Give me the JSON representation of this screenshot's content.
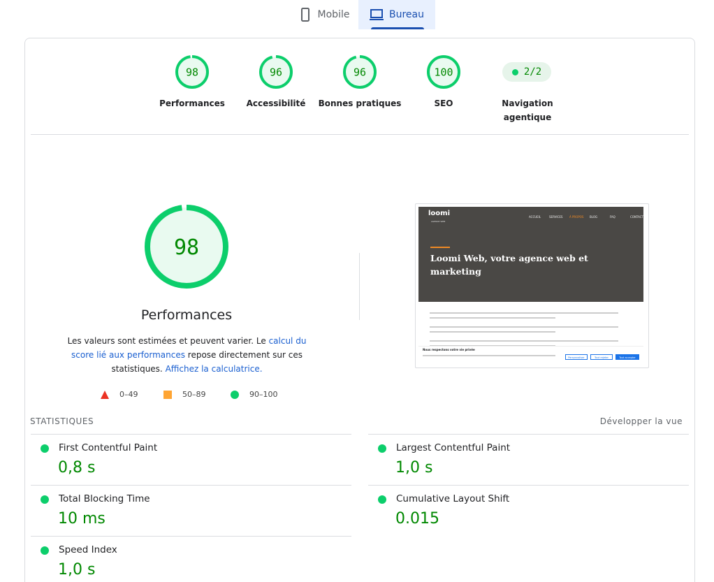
{
  "tabs": [
    {
      "label": "Mobile",
      "active": false
    },
    {
      "label": "Bureau",
      "active": true
    }
  ],
  "gauge_range": [
    0,
    100
  ],
  "scores": [
    {
      "label": "Performances",
      "value": 98
    },
    {
      "label": "Accessibilité",
      "value": 96
    },
    {
      "label": "Bonnes pratiques",
      "value": 96
    },
    {
      "label": "SEO",
      "value": 100
    }
  ],
  "agentic": {
    "label": "Navigation agentique",
    "value": "2/2"
  },
  "description": [
    {
      "text": "Les valeurs sont estimées et peuvent varier. Le ",
      "link": false
    },
    {
      "text": "calcul du score lié aux performances",
      "link": true
    },
    {
      "text": " repose directement sur ces statistiques. ",
      "link": false
    },
    {
      "text": "Affichez la calculatrice.",
      "link": true
    }
  ],
  "legend": [
    {
      "label": "0–49",
      "shape": "triangle",
      "color": "#eb3223"
    },
    {
      "label": "50–89",
      "shape": "square",
      "color": "#ffa533"
    },
    {
      "label": "90–100",
      "shape": "circle",
      "color": "#0cce6b"
    }
  ],
  "thumbnail": {
    "logo": "loomi",
    "tagline": "AGENCE WEB",
    "nav": [
      "ACCUEIL",
      "SERVICES",
      "À PROPOS",
      "BLOG",
      "FAQ",
      "CONTACT"
    ],
    "headline": "Loomi Web, votre agence web et marketing",
    "cookie_title": "Nous respectons votre vie privée",
    "buttons": [
      "Personnaliser",
      "Tout rejeter",
      "Tout accepter"
    ]
  },
  "stats": {
    "title": "STATISTIQUES",
    "expand": "Développer la vue",
    "metrics": [
      {
        "name": "First Contentful Paint",
        "value": "0,8 s",
        "color": "#0cce6b"
      },
      {
        "name": "Largest Contentful Paint",
        "value": "1,0 s",
        "color": "#0cce6b"
      },
      {
        "name": "Total Blocking Time",
        "value": "10 ms",
        "color": "#0cce6b"
      },
      {
        "name": "Cumulative Layout Shift",
        "value": "0.015",
        "color": "#0cce6b"
      },
      {
        "name": "Speed Index",
        "value": "1,0 s",
        "color": "#0cce6b"
      }
    ]
  }
}
